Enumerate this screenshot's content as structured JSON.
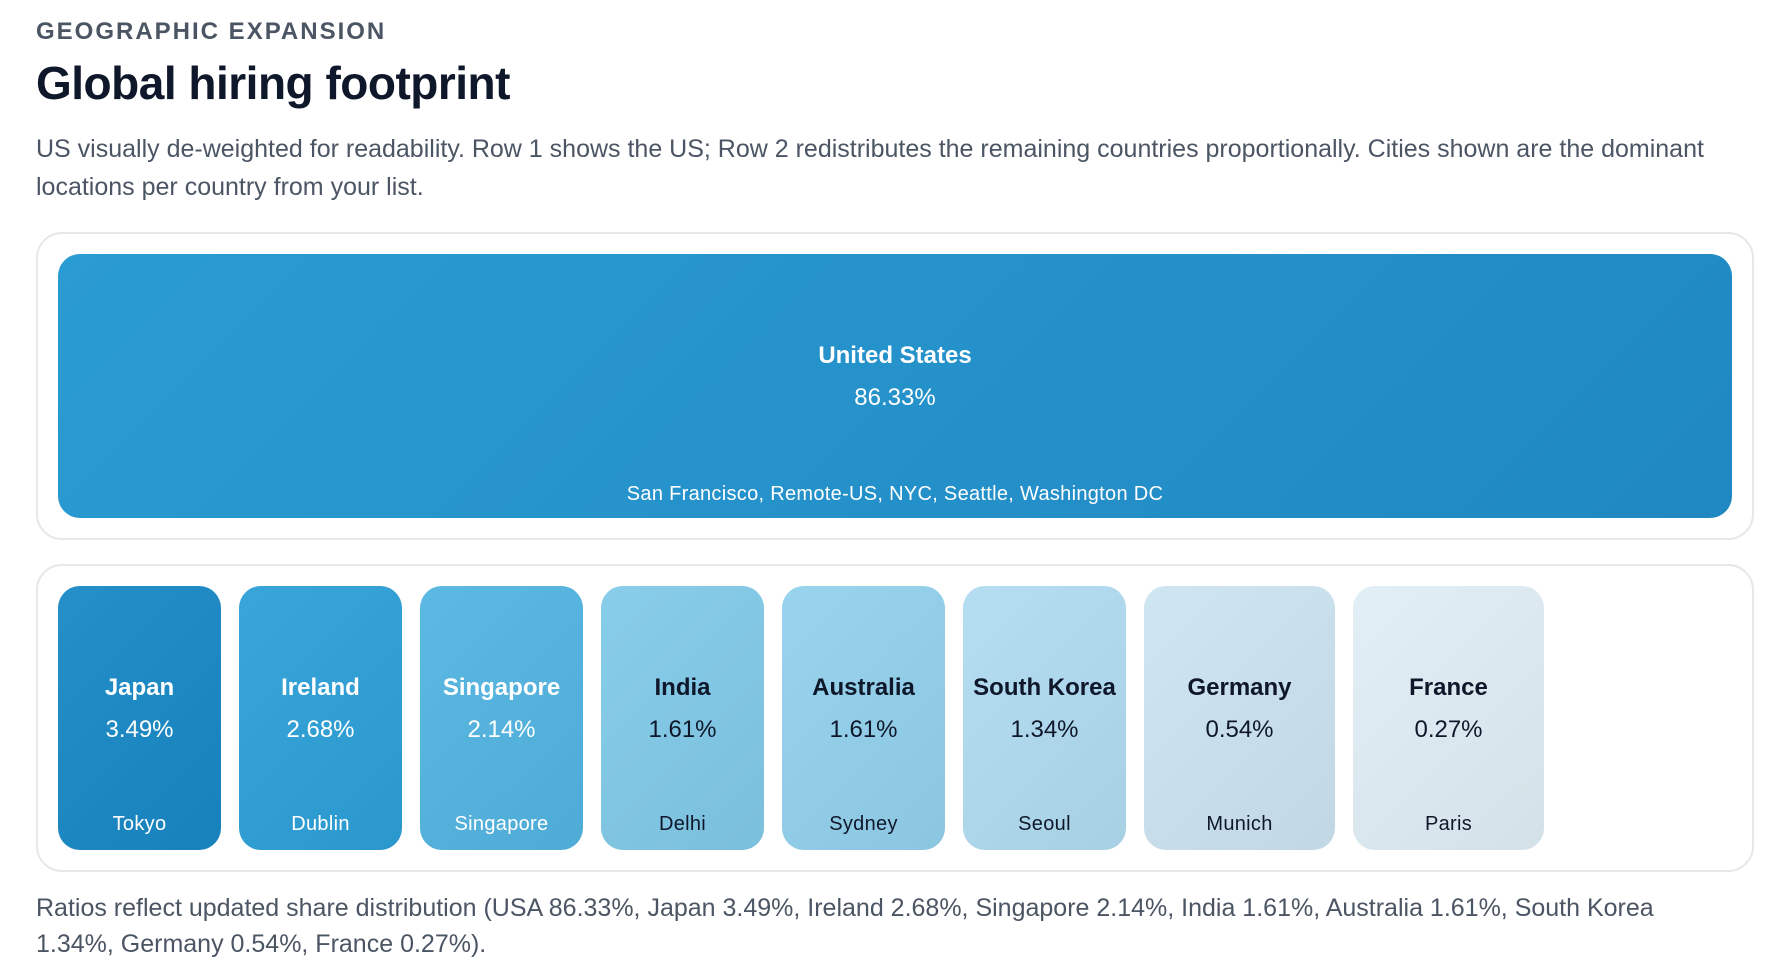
{
  "header": {
    "eyebrow": "GEOGRAPHIC EXPANSION",
    "title": "Global hiring footprint",
    "subtitle": "US visually de-weighted for readability. Row 1 shows the US; Row 2 redistributes the remaining countries proportionally. Cities shown are the dominant locations per country from your list."
  },
  "chart_data": {
    "type": "treemap",
    "unit": "%",
    "rows": [
      {
        "items": [
          {
            "country": "United States",
            "share": 86.33,
            "label": "86.33%",
            "cities": "San Francisco, Remote-US, NYC, Seattle, Washington DC",
            "color": "#2593cb",
            "text_color": "#ffffff"
          }
        ]
      },
      {
        "items": [
          {
            "country": "Japan",
            "share": 3.49,
            "label": "3.49%",
            "cities": "Tokyo",
            "color": "#258fc9",
            "text_color": "#ffffff"
          },
          {
            "country": "Ireland",
            "share": 2.68,
            "label": "2.68%",
            "cities": "Dublin",
            "color": "#38a6da",
            "text_color": "#ffffff"
          },
          {
            "country": "Singapore",
            "share": 2.14,
            "label": "2.14%",
            "cities": "Singapore",
            "color": "#5bb9e3",
            "text_color": "#ffffff"
          },
          {
            "country": "India",
            "share": 1.61,
            "label": "1.61%",
            "cities": "Delhi",
            "color": "#88cdea",
            "text_color": "#0f172a"
          },
          {
            "country": "Australia",
            "share": 1.61,
            "label": "1.61%",
            "cities": "Sydney",
            "color": "#99d4ee",
            "text_color": "#0f172a"
          },
          {
            "country": "South Korea",
            "share": 1.34,
            "label": "1.34%",
            "cities": "Seoul",
            "color": "#b6def2",
            "text_color": "#0f172a"
          },
          {
            "country": "Germany",
            "share": 0.54,
            "label": "0.54%",
            "cities": "Munich",
            "color": "#cfe6f2",
            "text_color": "#0f172a"
          },
          {
            "country": "France",
            "share": 0.27,
            "label": "0.27%",
            "cities": "Paris",
            "color": "#e2eff6",
            "text_color": "#0f172a"
          }
        ]
      }
    ]
  },
  "footnote": "Ratios reflect updated share distribution (USA 86.33%, Japan 3.49%, Ireland 2.68%, Singapore 2.14%, India 1.61%, Australia 1.61%, South Korea 1.34%, Germany 0.54%, France 0.27%)."
}
